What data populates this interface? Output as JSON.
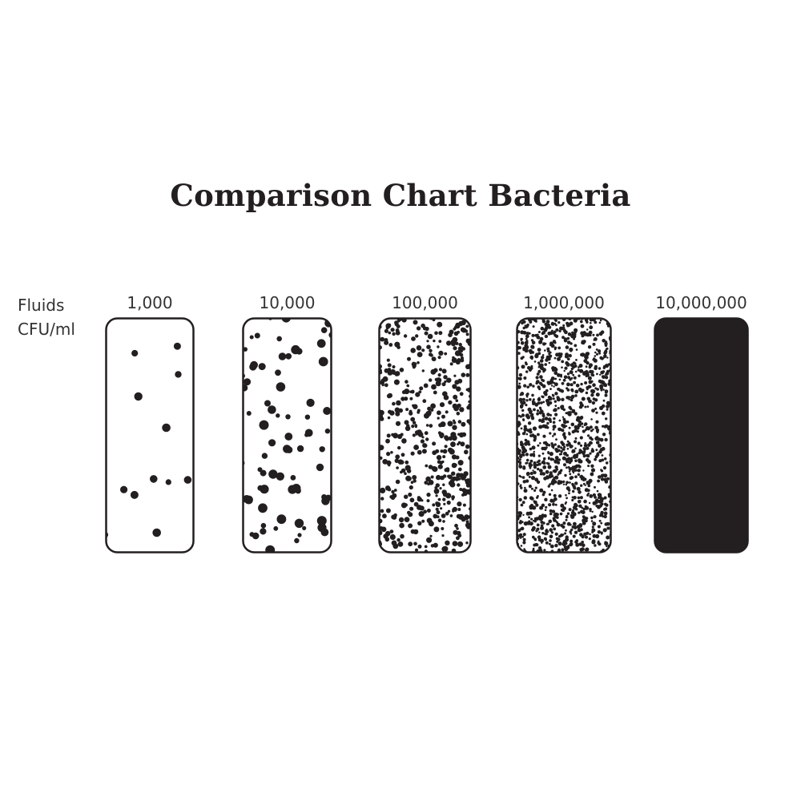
{
  "title": "Comparison Chart Bacteria",
  "row_label": {
    "line1": "Fluids",
    "line2": "CFU/ml"
  },
  "samples": [
    {
      "label": "1,000",
      "value": 1000
    },
    {
      "label": "10,000",
      "value": 10000
    },
    {
      "label": "100,000",
      "value": 100000
    },
    {
      "label": "1,000,000",
      "value": 1000000
    },
    {
      "label": "10,000,000",
      "value": 10000000
    }
  ],
  "colors": {
    "ink": "#231f20",
    "background": "#ffffff"
  }
}
